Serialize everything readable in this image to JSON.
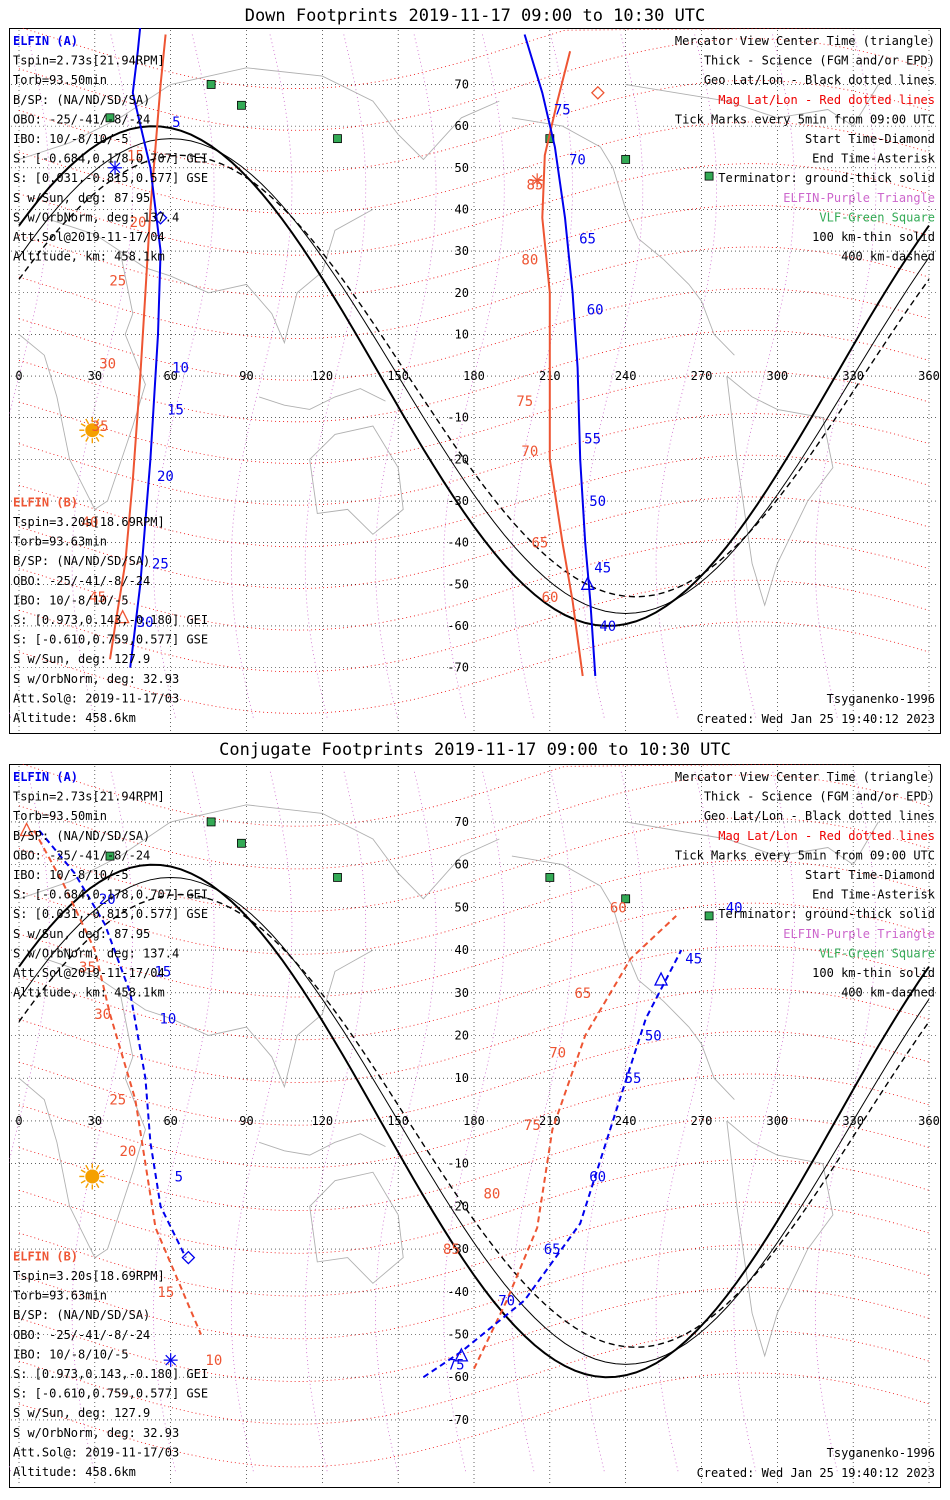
{
  "colors": {
    "elfin_a": "#0000ee",
    "elfin_b": "#ee5533",
    "mag_grid": "#ee0000",
    "geo_grid": "#000000",
    "purple": "#cc66cc",
    "green": "#33aa55",
    "sun": "#f5a000",
    "coast": "#b0b0b0"
  },
  "legend": [
    {
      "text": "Mercator View Center Time (triangle)",
      "color": "#000000"
    },
    {
      "text": "Thick - Science (FGM and/or EPD)",
      "color": "#000000"
    },
    {
      "text": "Geo Lat/Lon - Black dotted lines",
      "color": "#000000"
    },
    {
      "text": "Mag Lat/Lon - Red dotted lines",
      "color": "#ee0000"
    },
    {
      "text": "Tick Marks every 5min from 09:00 UTC",
      "color": "#000000"
    },
    {
      "text": "Start Time-Diamond",
      "color": "#000000"
    },
    {
      "text": "End Time-Asterisk",
      "color": "#000000"
    },
    {
      "text": "Terminator: ground-thick solid",
      "color": "#000000"
    },
    {
      "text": "ELFIN-Purple Triangle",
      "color": "#cc66cc"
    },
    {
      "text": "VLF-Green Square",
      "color": "#33aa55"
    },
    {
      "text": "100 km-thin solid",
      "color": "#000000"
    },
    {
      "text": "400 km-dashed",
      "color": "#000000"
    }
  ],
  "elfin_a_info": [
    "ELFIN (A)",
    "Tspin=2.73s[21.94RPM]",
    "Torb=93.50min",
    "B/SP: (NA/ND/SD/SA)",
    "OBO: -25/-41/-8/-24",
    "IBO: 10/-8/10/-5",
    "S: [-0.684,0.178,0.707] GEI",
    "S: [0.031,-0.815,0.577] GSE",
    "S w/Sun, deg: 87.95",
    "S w/OrbNorm, deg: 137.4",
    "Att.Sol@2019-11-17/04",
    "Altitude, km: 458.1km"
  ],
  "elfin_b_info": [
    "ELFIN (B)",
    "Tspin=3.20s[18.69RPM]",
    "Torb=93.63min",
    "B/SP: (NA/ND/SD/SA)",
    "OBO: -25/-41/-8/-24",
    "IBO: 10/-8/10/-5",
    "S: [0.973,0.143,-0.180] GEI",
    "S: [-0.610,0.759,0.577] GSE",
    "S w/Sun, deg: 127.9",
    "S w/OrbNorm, deg: 32.93",
    "Att.Sol@: 2019-11-17/03",
    "Altitude: 458.6km"
  ],
  "model_label": "Tsyganenko-1996",
  "created_label": "Created: Wed Jan 25 19:40:12 2023",
  "chart_data": [
    {
      "type": "scatter",
      "title": "Down Footprints 2019-11-17 09:00 to 10:30 UTC",
      "xlim": [
        0,
        360
      ],
      "ylim": [
        -80,
        80
      ],
      "x_ticks": [
        0,
        30,
        60,
        90,
        120,
        150,
        180,
        210,
        240,
        270,
        300,
        330,
        360
      ],
      "y_ticks": [
        70,
        60,
        50,
        40,
        30,
        20,
        10,
        -10,
        -20,
        -30,
        -40,
        -50,
        -60,
        -70
      ],
      "x_tick_labels": [
        "0",
        "30",
        "60",
        "90",
        "120",
        "150",
        "180",
        "210",
        "240",
        "270",
        "300",
        "330",
        "360"
      ],
      "y_tick_labels": [
        "70",
        "60",
        "50",
        "40",
        "30",
        "20",
        "10",
        "-10",
        "-20",
        "-30",
        "-40",
        "-50",
        "-60",
        "-70"
      ],
      "sun": {
        "lon": 29,
        "lat": -13
      },
      "vlf_stations": [
        [
          76,
          70
        ],
        [
          88,
          65
        ],
        [
          36,
          62
        ],
        [
          126,
          57
        ],
        [
          210,
          57
        ],
        [
          240,
          52
        ],
        [
          273,
          48
        ]
      ],
      "elfin_a_track": [
        [
          48,
          84
        ],
        [
          47,
          78
        ],
        [
          45,
          68
        ],
        [
          52,
          50
        ],
        [
          56,
          30
        ],
        [
          55,
          10
        ],
        [
          52,
          -20
        ],
        [
          48,
          -50
        ],
        [
          45,
          -65
        ],
        [
          44,
          -70
        ]
      ],
      "elfin_b_track": [
        [
          58,
          82
        ],
        [
          56,
          70
        ],
        [
          54,
          55
        ],
        [
          52,
          40
        ],
        [
          50,
          20
        ],
        [
          48,
          0
        ],
        [
          45,
          -25
        ],
        [
          42,
          -45
        ],
        [
          38,
          -60
        ],
        [
          36,
          -68
        ]
      ],
      "elfin_a_track2": [
        [
          200,
          82
        ],
        [
          207,
          68
        ],
        [
          212,
          55
        ],
        [
          216,
          38
        ],
        [
          219,
          20
        ],
        [
          221,
          2
        ],
        [
          222,
          -20
        ],
        [
          224,
          -40
        ],
        [
          226,
          -54
        ],
        [
          228,
          -72
        ]
      ],
      "elfin_b_track2": [
        [
          218,
          78
        ],
        [
          213,
          66
        ],
        [
          208,
          53
        ],
        [
          207,
          38
        ],
        [
          210,
          20
        ],
        [
          210,
          2
        ],
        [
          210,
          -20
        ],
        [
          215,
          -40
        ],
        [
          219,
          -54
        ],
        [
          223,
          -72
        ]
      ],
      "a_ticks": [
        [
          210,
          64,
          "75"
        ],
        [
          216,
          52,
          "70"
        ],
        [
          220,
          33,
          "65"
        ],
        [
          223,
          16,
          "60"
        ],
        [
          222,
          -15,
          "55"
        ],
        [
          224,
          -30,
          "50"
        ],
        [
          226,
          -46,
          "45"
        ],
        [
          228,
          -60,
          "40"
        ],
        [
          59,
          61,
          "5"
        ],
        [
          59,
          2,
          "10"
        ],
        [
          57,
          -8,
          "15"
        ],
        [
          53,
          -24,
          "20"
        ],
        [
          51,
          -45,
          "25"
        ],
        [
          45,
          -59,
          "30"
        ]
      ],
      "b_ticks": [
        [
          209,
          46,
          "85"
        ],
        [
          207,
          28,
          "80"
        ],
        [
          205,
          -6,
          "75"
        ],
        [
          207,
          -18,
          "70"
        ],
        [
          211,
          -40,
          "65"
        ],
        [
          215,
          -53,
          "60"
        ],
        [
          51,
          53,
          "15"
        ],
        [
          52,
          37,
          "20"
        ],
        [
          44,
          23,
          "25"
        ],
        [
          40,
          3,
          "30"
        ],
        [
          37,
          -12,
          "35"
        ],
        [
          33,
          -35,
          "40"
        ],
        [
          36,
          -53,
          "45"
        ]
      ],
      "markers": [
        {
          "kind": "diamond",
          "who": "a",
          "lon": 56,
          "lat": 38
        },
        {
          "kind": "asterisk",
          "who": "a",
          "lon": 38,
          "lat": 50
        },
        {
          "kind": "triangle",
          "who": "a",
          "lon": 225,
          "lat": -50
        },
        {
          "kind": "diamond",
          "who": "b",
          "lon": 229,
          "lat": 68
        },
        {
          "kind": "asterisk",
          "who": "b",
          "lon": 205,
          "lat": 47
        },
        {
          "kind": "triangle",
          "who": "b",
          "lon": 41,
          "lat": -58
        }
      ],
      "terminator": {
        "lon0": 53,
        "amp": 60
      },
      "thin_terminator": {
        "lon0": 60,
        "amp": 57
      }
    },
    {
      "type": "scatter",
      "title": "Conjugate Footprints 2019-11-17 09:00 to 10:30 UTC",
      "xlim": [
        0,
        360
      ],
      "ylim": [
        -80,
        80
      ],
      "x_ticks": [
        0,
        30,
        60,
        90,
        120,
        150,
        180,
        210,
        240,
        270,
        300,
        330,
        360
      ],
      "y_ticks": [
        70,
        60,
        50,
        40,
        30,
        20,
        10,
        -10,
        -20,
        -30,
        -40,
        -50,
        -60,
        -70
      ],
      "x_tick_labels": [
        "0",
        "30",
        "60",
        "90",
        "120",
        "150",
        "180",
        "210",
        "240",
        "270",
        "300",
        "330",
        "360"
      ],
      "y_tick_labels": [
        "70",
        "60",
        "50",
        "40",
        "30",
        "20",
        "10",
        "-10",
        "-20",
        "-30",
        "-40",
        "-50",
        "-60",
        "-70"
      ],
      "sun": {
        "lon": 29,
        "lat": -13
      },
      "vlf_stations": [
        [
          76,
          70
        ],
        [
          88,
          65
        ],
        [
          36,
          62
        ],
        [
          126,
          57
        ],
        [
          210,
          57
        ],
        [
          240,
          52
        ],
        [
          273,
          48
        ]
      ],
      "elfin_a_track": [
        [
          8,
          68
        ],
        [
          22,
          58
        ],
        [
          34,
          46
        ],
        [
          44,
          30
        ],
        [
          50,
          10
        ],
        [
          52,
          -5
        ],
        [
          56,
          -20
        ],
        [
          66,
          -32
        ]
      ],
      "elfin_b_track": [
        [
          6,
          68
        ],
        [
          18,
          55
        ],
        [
          30,
          40
        ],
        [
          36,
          25
        ],
        [
          46,
          5
        ],
        [
          50,
          -10
        ],
        [
          54,
          -25
        ],
        [
          72,
          -50
        ]
      ],
      "elfin_a_track2": [
        [
          160,
          -60
        ],
        [
          175,
          -54
        ],
        [
          200,
          -42
        ],
        [
          222,
          -24
        ],
        [
          236,
          2
        ],
        [
          248,
          24
        ],
        [
          262,
          40
        ]
      ],
      "elfin_b_track2": [
        [
          180,
          -58
        ],
        [
          193,
          -42
        ],
        [
          205,
          -25
        ],
        [
          211,
          -2
        ],
        [
          224,
          20
        ],
        [
          242,
          38
        ],
        [
          260,
          48
        ]
      ],
      "a_ticks": [
        [
          30,
          52,
          "20"
        ],
        [
          52,
          35,
          "15"
        ],
        [
          54,
          24,
          "10"
        ],
        [
          60,
          -13,
          "5"
        ],
        [
          278,
          50,
          "40"
        ],
        [
          262,
          38,
          "45"
        ],
        [
          246,
          20,
          "50"
        ],
        [
          238,
          10,
          "55"
        ],
        [
          224,
          -13,
          "60"
        ],
        [
          206,
          -30,
          "65"
        ],
        [
          188,
          -42,
          "70"
        ],
        [
          168,
          -57,
          "75"
        ]
      ],
      "b_ticks": [
        [
          32,
          36,
          "35"
        ],
        [
          38,
          25,
          "30"
        ],
        [
          44,
          5,
          "25"
        ],
        [
          48,
          -7,
          "20"
        ],
        [
          63,
          -40,
          "15"
        ],
        [
          82,
          -56,
          "10"
        ],
        [
          242,
          50,
          "60"
        ],
        [
          228,
          30,
          "65"
        ],
        [
          218,
          16,
          "70"
        ],
        [
          208,
          -1,
          "75"
        ],
        [
          192,
          -17,
          "80"
        ],
        [
          176,
          -30,
          "85"
        ]
      ],
      "markers": [
        {
          "kind": "diamond",
          "who": "a",
          "lon": 67,
          "lat": -32
        },
        {
          "kind": "asterisk",
          "who": "a",
          "lon": 60,
          "lat": -56
        },
        {
          "kind": "triangle",
          "who": "a",
          "lon": 254,
          "lat": 33
        },
        {
          "kind": "triangle",
          "who": "b",
          "lon": 3,
          "lat": 68
        },
        {
          "kind": "triangle",
          "who": "a",
          "lon": 175,
          "lat": -55
        }
      ],
      "terminator": {
        "lon0": 53,
        "amp": 60
      },
      "thin_terminator": {
        "lon0": 60,
        "amp": 57
      }
    }
  ]
}
